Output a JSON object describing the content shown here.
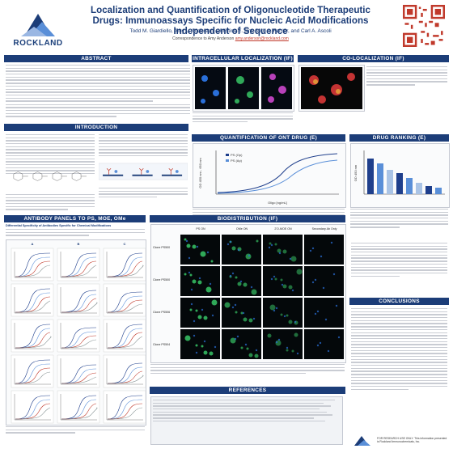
{
  "header": {
    "org": "ROCKLAND",
    "title": "Localization and Quantification of Oligonucleotide Therapeutic Drugs: Immunoassays Specific for Nucleic Acid Modifications Independent of Sequence",
    "authors": "Todd M. Giardiello, Amy L. Anderson, Christine E. Dry, Seth A. Farrier, and Carl A. Ascoli",
    "correspondence_label": "Correspondence to Amy Anderson",
    "correspondence_email": "amy.anderson@rockland.com"
  },
  "sections": {
    "abstract": "ABSTRACT",
    "introduction": "INTRODUCTION",
    "panels": "ANTIBODY PANELS TO PS, MOE, OMe",
    "ihc": "INTRACELLULAR LOCALIZATION (IF)",
    "coloc": "CO-LOCALIZATION (IF)",
    "quant": "QUANTIFICATION OF ONT DRUG (E)",
    "ranking": "DRUG RANKING (E)",
    "biodist": "BIODISTRIBUTION (IF)",
    "conclusions": "CONCLUSIONS",
    "references": "REFERENCES"
  },
  "panels": {
    "subtitle": "Differential Specificity of Antibodies Specific for Chemical Modifications",
    "col_headers": [
      "A",
      "B",
      "C"
    ]
  },
  "biodist": {
    "col_headers": [
      "PS ON",
      "OMe ON",
      "2'O-MOE ON",
      "Secondary Ab Only"
    ],
    "row_labels": [
      "Clone PS500",
      "Clone PS500",
      "Clone PS506",
      "Clone PS504"
    ]
  },
  "quant_chart": {
    "legend": [
      "PS (Op)",
      "PS (Ap)"
    ],
    "ylabel": "OD 450 nm - 650 nm",
    "xlabel": "Oligo [ng/mL]",
    "legend_colors": [
      "#1f3f8c",
      "#5a8fd8"
    ]
  },
  "ranking_chart": {
    "ylabel": "OD 450 nm",
    "colors": [
      "#1f3f8c",
      "#5a8fd8",
      "#aac4e6"
    ]
  },
  "footer": {
    "disclaimer": "FOR RESEARCH USE ONLY. This information presented is Rockland Immunochemicals, Inc."
  },
  "colors": {
    "primary": "#1c3d78",
    "accent": "#c0392b"
  }
}
